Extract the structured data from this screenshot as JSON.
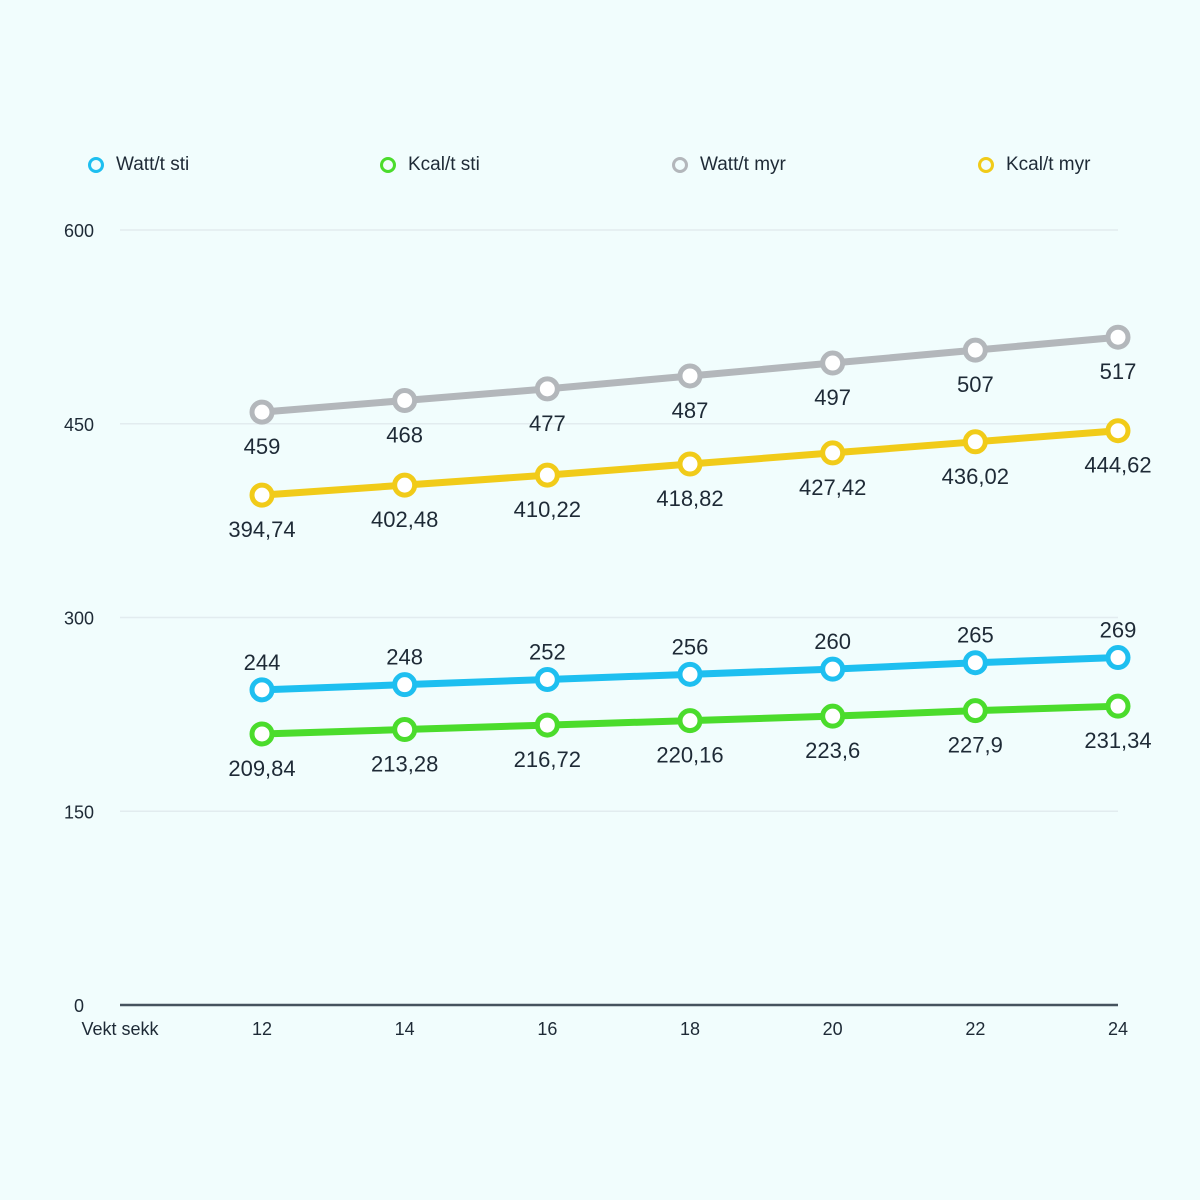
{
  "chart_data": {
    "type": "line",
    "title": "",
    "xlabel": "Vekt sekk",
    "ylabel": "",
    "x": [
      12,
      14,
      16,
      18,
      20,
      22,
      24
    ],
    "x_tick_labels": [
      "12",
      "14",
      "16",
      "18",
      "20",
      "22",
      "24"
    ],
    "ylim": [
      0,
      600
    ],
    "y_ticks": [
      0,
      150,
      300,
      450,
      600
    ],
    "y_tick_labels": [
      "0",
      "150",
      "300",
      "450",
      "600"
    ],
    "grid": true,
    "legend_position": "top",
    "series": [
      {
        "name": "Watt/t sti",
        "color": "#1ebff0",
        "label_pos": "above",
        "values": [
          244,
          248,
          252,
          256,
          260,
          265,
          269
        ],
        "labels": [
          "244",
          "248",
          "252",
          "256",
          "260",
          "265",
          "269"
        ]
      },
      {
        "name": "Kcal/t sti",
        "color": "#4bdc2c",
        "label_pos": "below",
        "values": [
          209.84,
          213.28,
          216.72,
          220.16,
          223.6,
          227.9,
          231.34
        ],
        "labels": [
          "209,84",
          "213,28",
          "216,72",
          "220,16",
          "223,6",
          "227,9",
          "231,34"
        ]
      },
      {
        "name": "Watt/t myr",
        "color": "#b3b7bb",
        "label_pos": "below",
        "values": [
          459,
          468,
          477,
          487,
          497,
          507,
          517
        ],
        "labels": [
          "459",
          "468",
          "477",
          "487",
          "497",
          "507",
          "517"
        ]
      },
      {
        "name": "Kcal/t myr",
        "color": "#f1cb19",
        "label_pos": "below",
        "values": [
          394.74,
          402.48,
          410.22,
          418.82,
          427.42,
          436.02,
          444.62
        ],
        "labels": [
          "394,74",
          "402,48",
          "410,22",
          "418,82",
          "427,42",
          "436,02",
          "444,62"
        ]
      }
    ]
  }
}
